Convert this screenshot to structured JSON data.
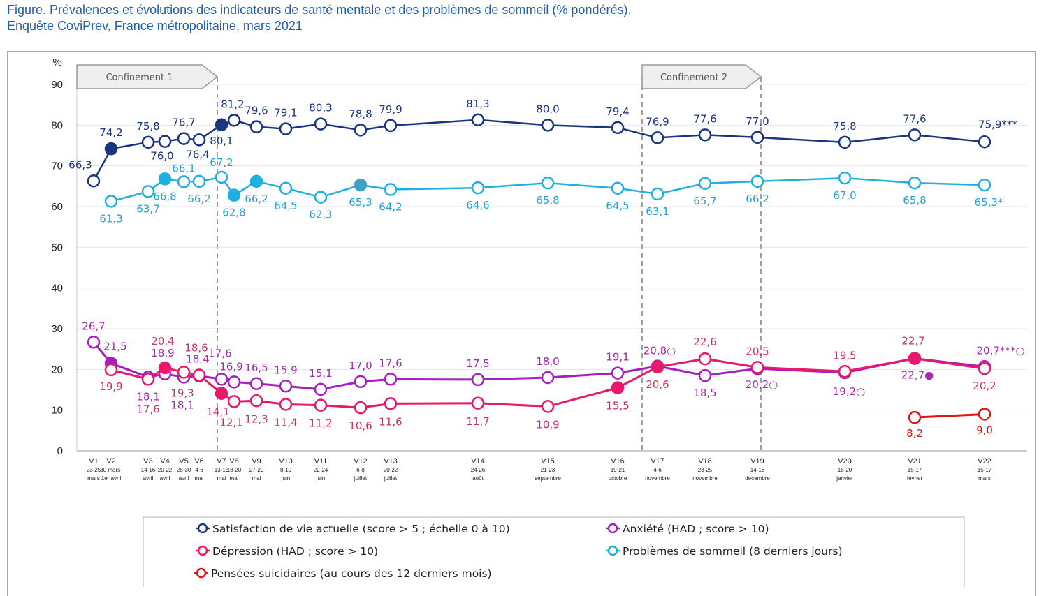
{
  "title_line1": "Figure. Prévalences et évolutions des indicateurs de santé mentale et des problèmes de sommeil (% pondérés).",
  "title_line2": "Enquête CoviPrev, France métropolitaine, mars 2021",
  "chart_data": {
    "type": "line",
    "ylabel": "%",
    "ylim": [
      0,
      90
    ],
    "yticks": [
      0,
      10,
      20,
      30,
      40,
      50,
      60,
      70,
      80,
      90
    ],
    "grid": true,
    "legend_position": "bottom",
    "annotations": [
      {
        "text": "Confinement 1",
        "from": "V1",
        "to": "V7"
      },
      {
        "text": "Confinement 2",
        "from": "V17",
        "to": "V19"
      }
    ],
    "categories": [
      {
        "wave": "V1",
        "date1": "23-25",
        "date2": "mars"
      },
      {
        "wave": "V2",
        "date1": "30 mars-",
        "date2": "1er avril"
      },
      {
        "wave": "V3",
        "date1": "14-16",
        "date2": "avril"
      },
      {
        "wave": "V4",
        "date1": "20-22",
        "date2": "avril"
      },
      {
        "wave": "V5",
        "date1": "28-30",
        "date2": "avril"
      },
      {
        "wave": "V6",
        "date1": "4-6",
        "date2": "mai"
      },
      {
        "wave": "V7",
        "date1": "13-15",
        "date2": "mai"
      },
      {
        "wave": "V8",
        "date1": "18-20",
        "date2": "mai"
      },
      {
        "wave": "V9",
        "date1": "27-29",
        "date2": "mai"
      },
      {
        "wave": "V10",
        "date1": "8-10",
        "date2": "juin"
      },
      {
        "wave": "V11",
        "date1": "22-24",
        "date2": "juin"
      },
      {
        "wave": "V12",
        "date1": "6-8",
        "date2": "juillet"
      },
      {
        "wave": "V13",
        "date1": "20-22",
        "date2": "juillet"
      },
      {
        "wave": "V14",
        "date1": "24-26",
        "date2": "août"
      },
      {
        "wave": "V15",
        "date1": "21-23",
        "date2": "septembre"
      },
      {
        "wave": "V16",
        "date1": "19-21",
        "date2": "octobre"
      },
      {
        "wave": "V17",
        "date1": "4-6",
        "date2": "novembre"
      },
      {
        "wave": "V18",
        "date1": "23-25",
        "date2": "novembre"
      },
      {
        "wave": "V19",
        "date1": "14-16",
        "date2": "décembre"
      },
      {
        "wave": "V20",
        "date1": "18-20",
        "date2": "janvier"
      },
      {
        "wave": "V21",
        "date1": "15-17",
        "date2": "février"
      },
      {
        "wave": "V22",
        "date1": "15-17",
        "date2": "mars"
      }
    ],
    "series": [
      {
        "name": "Satisfaction de vie actuelle (score > 5 ; échelle 0 à 10)",
        "color": "#1a3580",
        "label_color": "#1a3580",
        "values": [
          66.3,
          74.2,
          75.8,
          76.0,
          76.7,
          76.4,
          80.1,
          81.2,
          79.6,
          79.1,
          80.3,
          78.8,
          79.9,
          81.3,
          80.0,
          79.4,
          76.9,
          77.6,
          77.0,
          75.8,
          77.6,
          75.9
        ],
        "labels": [
          "66,3",
          "74,2",
          "75,8",
          "76,0",
          "76,7",
          "76,4",
          "80,1",
          "81,2",
          "79,6",
          "79,1",
          "80,3",
          "78,8",
          "79,9",
          "81,3",
          "80,0",
          "79,4",
          "76,9",
          "77,6",
          "77,0",
          "75,8",
          "77,6",
          "75,9***"
        ],
        "filled": [
          "V2",
          "V7"
        ]
      },
      {
        "name": "Problèmes de sommeil (8 derniers jours)",
        "color": "#1fb0e0",
        "label_color": "#1fa5d5",
        "values": [
          null,
          61.3,
          63.7,
          66.8,
          66.1,
          66.2,
          67.2,
          62.8,
          66.2,
          64.5,
          62.3,
          65.3,
          64.2,
          64.6,
          65.8,
          64.5,
          63.1,
          65.7,
          66.2,
          67.0,
          65.8,
          65.3
        ],
        "labels": [
          null,
          "61,3",
          "63,7",
          "66,8",
          "66,1",
          "66,2",
          "67,2",
          "62,8",
          "66,2",
          "64,5",
          "62,3",
          "65,3",
          "64,2",
          "64,6",
          "65,8",
          "64,5",
          "63,1",
          "65,7",
          "66,2",
          "67,0",
          "65,8",
          "65,3*"
        ],
        "filled": [
          "V4",
          "V8",
          "V9",
          "V12"
        ]
      },
      {
        "name": "Anxiété (HAD ; score > 10)",
        "color": "#a51fc0",
        "label_color": "#a52aae",
        "values": [
          26.7,
          21.5,
          18.1,
          18.9,
          18.1,
          18.4,
          17.6,
          16.9,
          16.5,
          15.9,
          15.1,
          17.0,
          17.6,
          17.5,
          18.0,
          19.1,
          20.8,
          18.5,
          20.2,
          19.2,
          22.7,
          20.7
        ],
        "labels": [
          "26,7",
          "21,5",
          "18,1",
          "18,9",
          "18,1",
          "18,4",
          "17,6",
          "16,9",
          "16,5",
          "15,9",
          "15,1",
          "17,0",
          "17,6",
          "17,5",
          "18,0",
          "19,1",
          "20,8○",
          "18,5",
          "20,2○",
          "19,2○",
          "22,7●",
          "20,7***○"
        ],
        "filled": [
          "V2"
        ]
      },
      {
        "name": "Dépression (HAD ; score > 10)",
        "color": "#e8186a",
        "label_color": "#cc2f6a",
        "values": [
          null,
          19.9,
          17.6,
          20.4,
          19.3,
          18.6,
          14.1,
          12.1,
          12.3,
          11.4,
          11.2,
          10.6,
          11.6,
          11.7,
          10.9,
          15.5,
          20.6,
          22.6,
          20.5,
          19.5,
          22.7,
          20.2
        ],
        "labels": [
          null,
          "19,9",
          "17,6",
          "20,4",
          "19,3",
          "18,6",
          "14,1",
          "12,1",
          "12,3",
          "11,4",
          "11,2",
          "10,6",
          "11,6",
          "11,7",
          "10,9",
          "15,5",
          "20,6",
          "22,6",
          "20,5",
          "19,5",
          "22,7",
          "20,2"
        ],
        "filled": [
          "V4",
          "V7",
          "V16",
          "V17",
          "V21"
        ]
      },
      {
        "name": "Pensées suicidaires (au cours des 12 derniers mois)",
        "color": "#e01414",
        "label_color": "#d81818",
        "values": [
          null,
          null,
          null,
          null,
          null,
          null,
          null,
          null,
          null,
          null,
          null,
          null,
          null,
          null,
          null,
          null,
          null,
          null,
          null,
          null,
          8.2,
          9.0
        ],
        "labels": [
          null,
          null,
          null,
          null,
          null,
          null,
          null,
          null,
          null,
          null,
          null,
          null,
          null,
          null,
          null,
          null,
          null,
          null,
          null,
          null,
          "8,2",
          "9,0"
        ],
        "filled": []
      }
    ]
  }
}
